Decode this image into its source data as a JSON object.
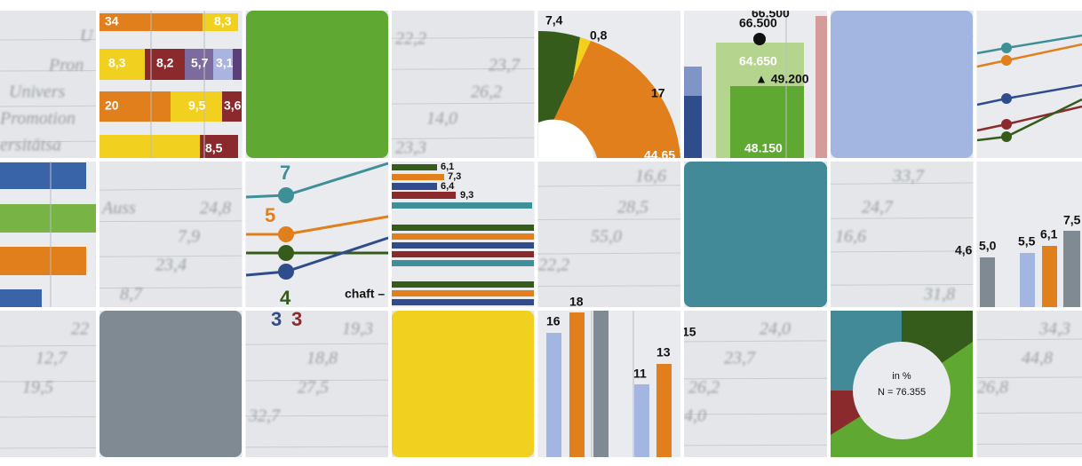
{
  "stacked_bars": [
    [
      "34",
      "8,3"
    ],
    [
      "8,3",
      "8,2",
      "5,7",
      "3,1"
    ],
    [
      "20",
      "9,5",
      "3,6"
    ],
    [
      "8,5"
    ]
  ],
  "pie": {
    "labels": [
      "7,4",
      "0,8",
      "17",
      "44,65"
    ]
  },
  "target_bars": {
    "labels": [
      "66.500",
      "64.650",
      "▲ 49.200",
      "48.150"
    ]
  },
  "slope": {
    "labels": [
      "7",
      "5",
      "4",
      "3",
      "3"
    ],
    "caption": "chaft –"
  },
  "thin_bars": [
    "6,1",
    "7,3",
    "6,4",
    "9,3"
  ],
  "right_columns": [
    "4,6",
    "5,0",
    "5,5",
    "6,1",
    "7,5"
  ],
  "columns": [
    "16",
    "18",
    "11",
    "13",
    "15"
  ],
  "donut": {
    "unit": "in %",
    "total": "N = 76.355"
  },
  "table_text": [
    "U",
    "Pron",
    "Univers",
    "Promotion",
    "ersitätsa",
    "22,2",
    "23,7",
    "26,2",
    "14,0",
    "23,3",
    "Auss",
    "24,8",
    "7,9",
    "23,4",
    "8,7",
    "16,6",
    "28,5",
    "55,0",
    "22,2",
    "33,7",
    "24,7",
    "16,6",
    "31,8",
    "22",
    "12,7",
    "19,5",
    "19,3",
    "18,8",
    "27,5",
    "32,7",
    "24,0",
    "23,7",
    "26,2",
    "4,0",
    "34,3",
    "44,8",
    "26,8"
  ]
}
